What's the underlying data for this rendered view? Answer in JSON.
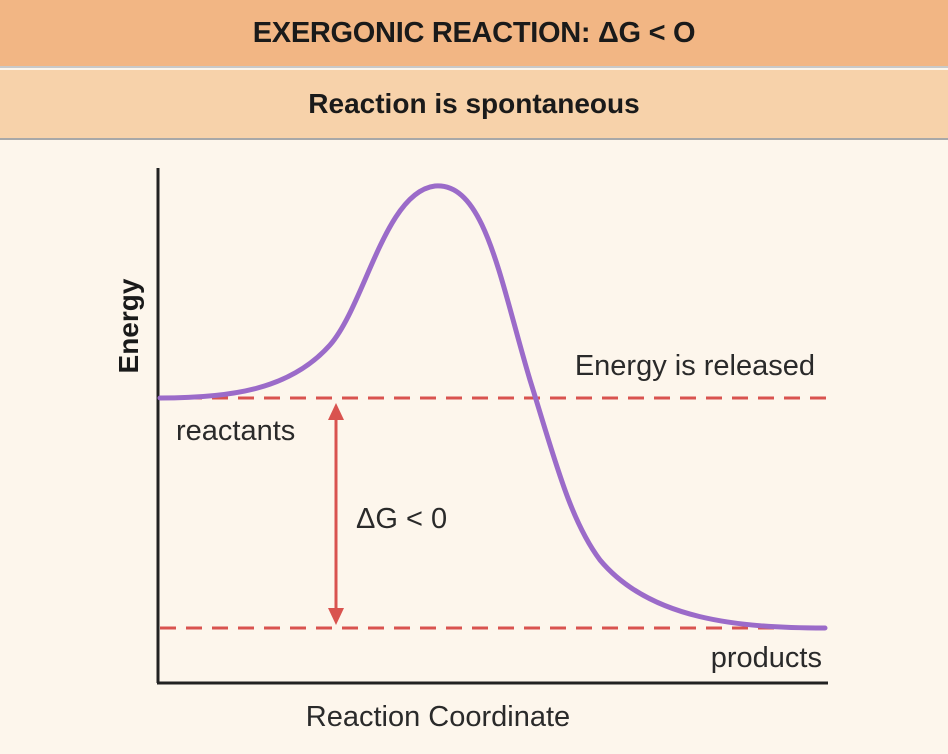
{
  "header": {
    "title": "EXERGONIC REACTION: ΔG < O",
    "subtitle": "Reaction is spontaneous"
  },
  "diagram": {
    "y_axis_label": "Energy",
    "x_axis_label": "Reaction Coordinate",
    "reactants_label": "reactants",
    "products_label": "products",
    "release_label": "Energy is released",
    "delta_label": "ΔG < 0",
    "colors": {
      "curve": "#9b6bc9",
      "dashed_lines": "#d9534f",
      "arrow": "#d9534f",
      "axes": "#222222",
      "header_bg": "#f2b684",
      "subheader_bg": "#f7d2aa",
      "background": "#fdf6ec"
    }
  }
}
